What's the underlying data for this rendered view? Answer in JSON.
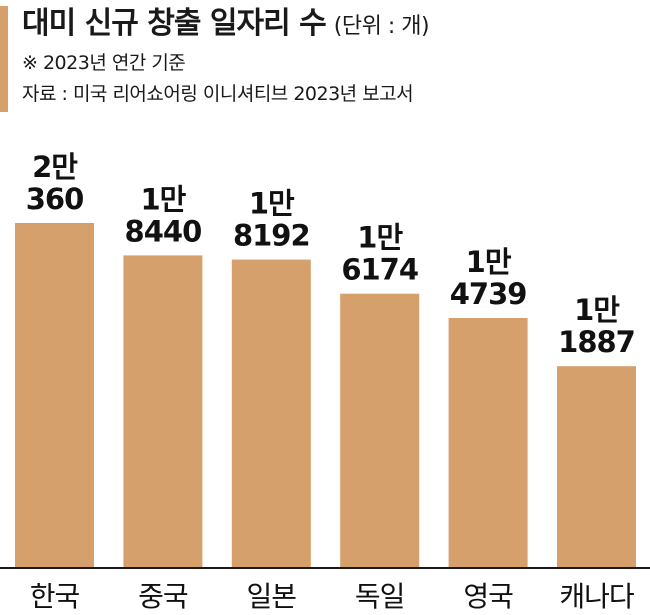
{
  "header": {
    "title": "대미 신규 창출 일자리 수",
    "unit": "(단위 : 개)",
    "note": "※ 2023년 연간 기준",
    "source": "자료 : 미국 리어쇼어링 이니셔티브 2023년 보고서"
  },
  "colors": {
    "bar": "#d6a06c",
    "accent": "#d6a06c",
    "axis": "#1a1a1a"
  },
  "chart_data": {
    "type": "bar",
    "title": "대미 신규 창출 일자리 수",
    "categories": [
      "한국",
      "중국",
      "일본",
      "독일",
      "영국",
      "캐나다"
    ],
    "values": [
      20360,
      18440,
      18192,
      16174,
      14739,
      11887
    ],
    "value_labels": [
      [
        "2만",
        "360"
      ],
      [
        "1만",
        "8440"
      ],
      [
        "1만",
        "8192"
      ],
      [
        "1만",
        "6174"
      ],
      [
        "1만",
        "4739"
      ],
      [
        "1만",
        "1887"
      ]
    ],
    "xlabel": "",
    "ylabel": "",
    "ylim": [
      0,
      20360
    ],
    "grid": false,
    "legend": "none"
  }
}
